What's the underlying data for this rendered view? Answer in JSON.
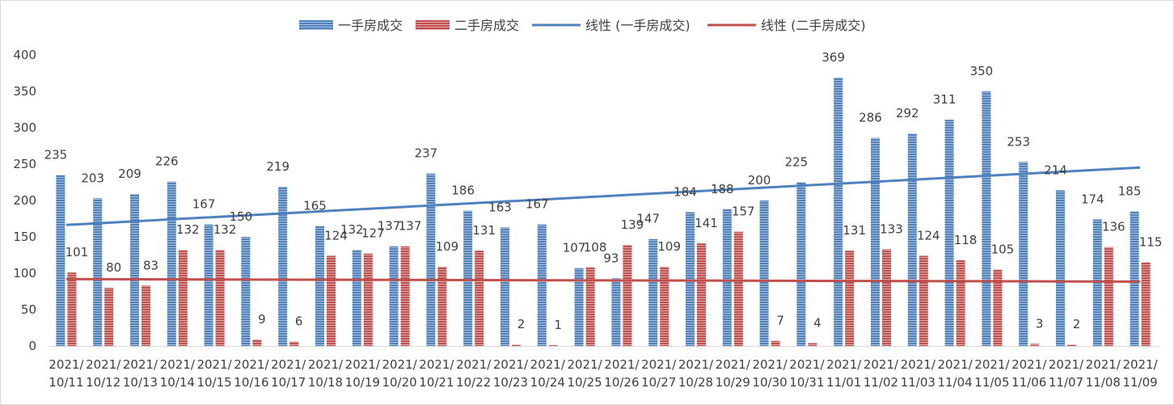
{
  "chart_data": {
    "type": "bar",
    "categories": [
      "2021/10/11",
      "2021/10/12",
      "2021/10/13",
      "2021/10/14",
      "2021/10/15",
      "2021/10/16",
      "2021/10/17",
      "2021/10/18",
      "2021/10/19",
      "2021/10/20",
      "2021/10/21",
      "2021/10/22",
      "2021/10/23",
      "2021/10/24",
      "2021/10/25",
      "2021/10/26",
      "2021/10/27",
      "2021/10/28",
      "2021/10/29",
      "2021/10/30",
      "2021/10/31",
      "2021/11/01",
      "2021/11/02",
      "2021/11/03",
      "2021/11/04",
      "2021/11/05",
      "2021/11/06",
      "2021/11/07",
      "2021/11/08",
      "2021/11/09"
    ],
    "series": [
      {
        "name": "一手房成交",
        "color": "#4f81bd",
        "values": [
          235,
          203,
          209,
          226,
          167,
          150,
          219,
          165,
          132,
          137,
          237,
          186,
          163,
          167,
          107,
          93,
          147,
          184,
          188,
          200,
          225,
          369,
          286,
          292,
          311,
          350,
          253,
          214,
          174,
          185
        ]
      },
      {
        "name": "二手房成交",
        "color": "#c0504d",
        "values": [
          101,
          80,
          83,
          132,
          132,
          9,
          6,
          124,
          127,
          137,
          109,
          131,
          2,
          1,
          108,
          139,
          109,
          141,
          157,
          7,
          4,
          131,
          133,
          124,
          118,
          105,
          3,
          2,
          136,
          115
        ]
      }
    ],
    "trendlines": [
      {
        "name": "线性 (一手房成交)",
        "color": "#4f81bd",
        "of_series": 0
      },
      {
        "name": "线性 (二手房成交)",
        "color": "#c0504d",
        "of_series": 1
      }
    ],
    "ylim": [
      0,
      400
    ],
    "yticks": [
      0,
      50,
      100,
      150,
      200,
      250,
      300,
      350,
      400
    ],
    "grid": false,
    "legend_position": "top",
    "title": "",
    "xlabel": "",
    "ylabel": ""
  }
}
